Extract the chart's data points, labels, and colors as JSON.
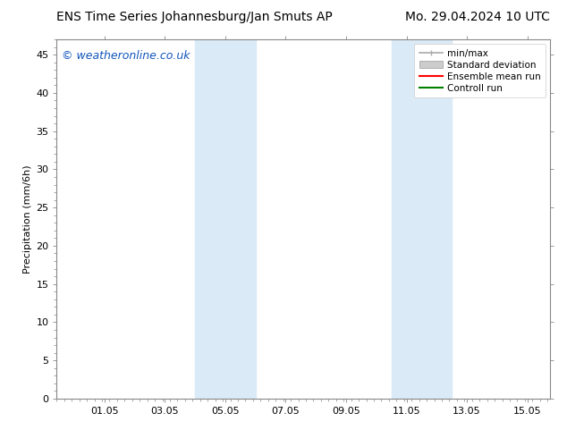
{
  "title": "ENS Time Series Johannesburg/Jan Smuts AP        Mo. 29.04.2024 10 UTC",
  "title_left": "ENS Time Series Johannesburg/Jan Smuts AP",
  "title_right": "Mo. 29.04.2024 10 UTC",
  "ylabel": "Precipitation (mm/6h)",
  "ylim": [
    0,
    47
  ],
  "yticks": [
    0,
    5,
    10,
    15,
    20,
    25,
    30,
    35,
    40,
    45
  ],
  "xtick_labels": [
    "01.05",
    "03.05",
    "05.05",
    "07.05",
    "09.05",
    "11.05",
    "13.05",
    "15.05"
  ],
  "xtick_positions": [
    1.5833,
    3.5833,
    5.5833,
    7.5833,
    9.5833,
    11.5833,
    13.5833,
    15.5833
  ],
  "xlim": [
    0,
    16.333
  ],
  "shaded_regions": [
    {
      "x_start": 4.5833,
      "x_end": 6.5833
    },
    {
      "x_start": 11.0833,
      "x_end": 13.0833
    }
  ],
  "shaded_color": "#daeaf7",
  "background_color": "#ffffff",
  "watermark_text": "© weatheronline.co.uk",
  "watermark_color": "#1155bb",
  "watermark_fontsize": 9,
  "title_fontsize": 10,
  "axis_label_fontsize": 8,
  "tick_fontsize": 8,
  "legend_fontsize": 7.5,
  "spine_color": "#888888",
  "tick_color": "#888888",
  "minmax_color": "#aaaaaa",
  "stddev_color": "#cccccc",
  "ensemble_color": "#ff0000",
  "control_color": "#008000"
}
